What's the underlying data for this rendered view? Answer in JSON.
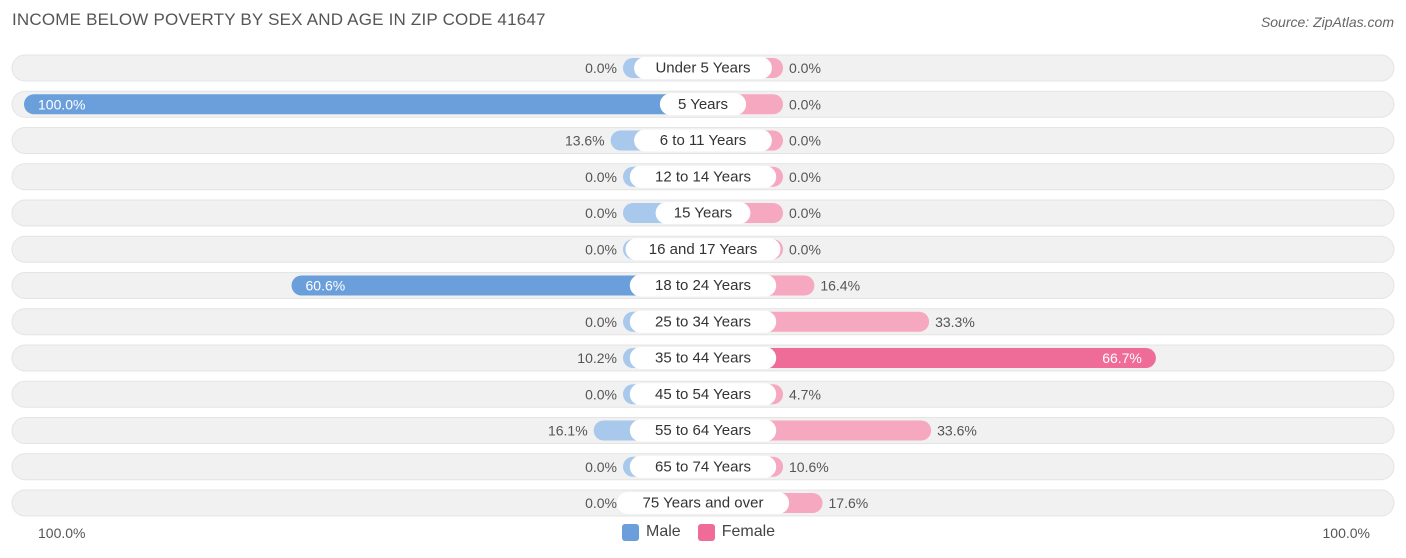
{
  "header": {
    "title": "INCOME BELOW POVERTY BY SEX AND AGE IN ZIP CODE 41647",
    "source": "Source: ZipAtlas.com"
  },
  "colors": {
    "male": "#6a9fdc",
    "male_light": "#a8c8ec",
    "female": "#f06c98",
    "female_light": "#f5a8c0",
    "track": "#f1f1f1"
  },
  "axis": {
    "left_label": "100.0%",
    "right_label": "100.0%"
  },
  "legend": {
    "male_label": "Male",
    "female_label": "Female"
  },
  "chart_data": {
    "type": "bar",
    "orientation": "diverging-horizontal",
    "title": "INCOME BELOW POVERTY BY SEX AND AGE IN ZIP CODE 41647",
    "categories": [
      "Under 5 Years",
      "5 Years",
      "6 to 11 Years",
      "12 to 14 Years",
      "15 Years",
      "16 and 17 Years",
      "18 to 24 Years",
      "25 to 34 Years",
      "35 to 44 Years",
      "45 to 54 Years",
      "55 to 64 Years",
      "65 to 74 Years",
      "75 Years and over"
    ],
    "series": [
      {
        "name": "Male",
        "values": [
          0.0,
          100.0,
          13.6,
          0.0,
          0.0,
          0.0,
          60.6,
          0.0,
          10.2,
          0.0,
          16.1,
          0.0,
          0.0
        ],
        "labels": [
          "0.0%",
          "100.0%",
          "13.6%",
          "0.0%",
          "0.0%",
          "0.0%",
          "60.6%",
          "0.0%",
          "10.2%",
          "0.0%",
          "16.1%",
          "0.0%",
          "0.0%"
        ]
      },
      {
        "name": "Female",
        "values": [
          0.0,
          0.0,
          0.0,
          0.0,
          0.0,
          0.0,
          16.4,
          33.3,
          66.7,
          4.7,
          33.6,
          10.6,
          17.6
        ],
        "labels": [
          "0.0%",
          "0.0%",
          "0.0%",
          "0.0%",
          "0.0%",
          "0.0%",
          "16.4%",
          "33.3%",
          "66.7%",
          "4.7%",
          "33.6%",
          "10.6%",
          "17.6%"
        ]
      }
    ],
    "xlim": [
      -100,
      100
    ],
    "legend_position": "bottom-center"
  }
}
